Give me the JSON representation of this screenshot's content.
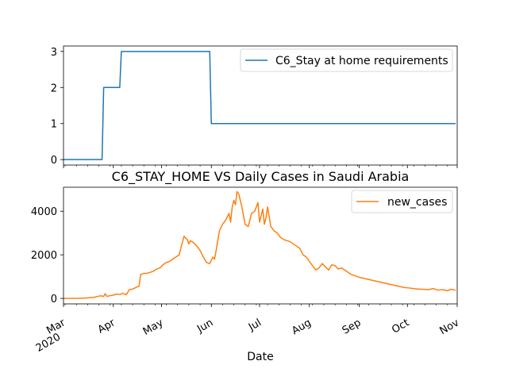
{
  "figure": {
    "title": "C6_STAY_HOME VS Daily Cases in Saudi Arabia",
    "xlabel": "Date"
  },
  "colors": {
    "series1": "#1f77b4",
    "series2": "#ff7f0e"
  },
  "chart_data": [
    {
      "type": "line",
      "title": "",
      "ylabel": "",
      "legend": {
        "position": "top-right",
        "entries": [
          "C6_Stay at home requirements"
        ]
      },
      "x_range": [
        "2020-03-01",
        "2020-11-01"
      ],
      "ylim": [
        -0.15,
        3.15
      ],
      "yticks": [
        0,
        1,
        2,
        3
      ],
      "grid": false,
      "series": [
        {
          "name": "C6_Stay at home requirements",
          "points": [
            [
              "2020-03-01",
              0
            ],
            [
              "2020-03-25",
              0
            ],
            [
              "2020-03-26",
              2
            ],
            [
              "2020-04-05",
              2
            ],
            [
              "2020-04-06",
              3
            ],
            [
              "2020-05-31",
              3
            ],
            [
              "2020-06-01",
              1
            ],
            [
              "2020-10-31",
              1
            ]
          ]
        }
      ]
    },
    {
      "type": "line",
      "title": "C6_STAY_HOME VS Daily Cases in Saudi Arabia",
      "xlabel": "Date",
      "ylabel": "",
      "legend": {
        "position": "top-right",
        "entries": [
          "new_cases"
        ]
      },
      "x_range": [
        "2020-03-01",
        "2020-11-01"
      ],
      "ylim": [
        -250,
        5100
      ],
      "yticks": [
        0,
        2000,
        4000
      ],
      "grid": false,
      "xtick_labels": [
        {
          "date": "2020-03-01",
          "label": "Mar",
          "sublabel": "2020"
        },
        {
          "date": "2020-04-01",
          "label": "Apr"
        },
        {
          "date": "2020-05-01",
          "label": "May"
        },
        {
          "date": "2020-06-01",
          "label": "Jun"
        },
        {
          "date": "2020-07-01",
          "label": "Jul"
        },
        {
          "date": "2020-08-01",
          "label": "Aug"
        },
        {
          "date": "2020-09-01",
          "label": "Sep"
        },
        {
          "date": "2020-10-01",
          "label": "Oct"
        },
        {
          "date": "2020-11-01",
          "label": "Nov"
        }
      ],
      "series": [
        {
          "name": "new_cases",
          "points": [
            [
              "2020-03-01",
              0
            ],
            [
              "2020-03-10",
              5
            ],
            [
              "2020-03-15",
              20
            ],
            [
              "2020-03-20",
              50
            ],
            [
              "2020-03-24",
              120
            ],
            [
              "2020-03-26",
              90
            ],
            [
              "2020-03-27",
              220
            ],
            [
              "2020-03-28",
              90
            ],
            [
              "2020-03-30",
              130
            ],
            [
              "2020-04-01",
              150
            ],
            [
              "2020-04-03",
              200
            ],
            [
              "2020-04-05",
              180
            ],
            [
              "2020-04-07",
              230
            ],
            [
              "2020-04-09",
              170
            ],
            [
              "2020-04-11",
              400
            ],
            [
              "2020-04-13",
              430
            ],
            [
              "2020-04-15",
              500
            ],
            [
              "2020-04-17",
              560
            ],
            [
              "2020-04-18",
              1100
            ],
            [
              "2020-04-20",
              1150
            ],
            [
              "2020-04-22",
              1150
            ],
            [
              "2020-04-24",
              1200
            ],
            [
              "2020-04-26",
              1250
            ],
            [
              "2020-04-28",
              1350
            ],
            [
              "2020-04-30",
              1400
            ],
            [
              "2020-05-02",
              1550
            ],
            [
              "2020-05-04",
              1650
            ],
            [
              "2020-05-06",
              1700
            ],
            [
              "2020-05-08",
              1800
            ],
            [
              "2020-05-10",
              1900
            ],
            [
              "2020-05-12",
              2000
            ],
            [
              "2020-05-13",
              2300
            ],
            [
              "2020-05-15",
              2850
            ],
            [
              "2020-05-17",
              2700
            ],
            [
              "2020-05-18",
              2500
            ],
            [
              "2020-05-19",
              2650
            ],
            [
              "2020-05-21",
              2550
            ],
            [
              "2020-05-23",
              2400
            ],
            [
              "2020-05-25",
              2200
            ],
            [
              "2020-05-27",
              1900
            ],
            [
              "2020-05-29",
              1650
            ],
            [
              "2020-05-31",
              1600
            ],
            [
              "2020-06-02",
              1900
            ],
            [
              "2020-06-03",
              1800
            ],
            [
              "2020-06-04",
              2200
            ],
            [
              "2020-06-06",
              3100
            ],
            [
              "2020-06-08",
              3400
            ],
            [
              "2020-06-10",
              3600
            ],
            [
              "2020-06-12",
              3900
            ],
            [
              "2020-06-13",
              3500
            ],
            [
              "2020-06-14",
              4200
            ],
            [
              "2020-06-15",
              4500
            ],
            [
              "2020-06-16",
              4300
            ],
            [
              "2020-06-17",
              4900
            ],
            [
              "2020-06-18",
              4800
            ],
            [
              "2020-06-20",
              4200
            ],
            [
              "2020-06-21",
              3800
            ],
            [
              "2020-06-22",
              3400
            ],
            [
              "2020-06-24",
              3300
            ],
            [
              "2020-06-26",
              3900
            ],
            [
              "2020-06-28",
              4000
            ],
            [
              "2020-06-30",
              4400
            ],
            [
              "2020-07-01",
              3500
            ],
            [
              "2020-07-03",
              4100
            ],
            [
              "2020-07-04",
              3400
            ],
            [
              "2020-07-05",
              3700
            ],
            [
              "2020-07-06",
              4200
            ],
            [
              "2020-07-08",
              3300
            ],
            [
              "2020-07-10",
              3100
            ],
            [
              "2020-07-12",
              3000
            ],
            [
              "2020-07-14",
              2800
            ],
            [
              "2020-07-16",
              2700
            ],
            [
              "2020-07-18",
              2650
            ],
            [
              "2020-07-20",
              2600
            ],
            [
              "2020-07-22",
              2500
            ],
            [
              "2020-07-24",
              2400
            ],
            [
              "2020-07-26",
              2300
            ],
            [
              "2020-07-28",
              2000
            ],
            [
              "2020-07-30",
              1900
            ],
            [
              "2020-08-01",
              1700
            ],
            [
              "2020-08-03",
              1500
            ],
            [
              "2020-08-05",
              1300
            ],
            [
              "2020-08-07",
              1400
            ],
            [
              "2020-08-09",
              1600
            ],
            [
              "2020-08-11",
              1450
            ],
            [
              "2020-08-13",
              1300
            ],
            [
              "2020-08-15",
              1550
            ],
            [
              "2020-08-17",
              1500
            ],
            [
              "2020-08-19",
              1350
            ],
            [
              "2020-08-21",
              1400
            ],
            [
              "2020-08-23",
              1300
            ],
            [
              "2020-08-25",
              1200
            ],
            [
              "2020-08-27",
              1100
            ],
            [
              "2020-08-29",
              1050
            ],
            [
              "2020-08-31",
              1000
            ],
            [
              "2020-09-02",
              950
            ],
            [
              "2020-09-05",
              900
            ],
            [
              "2020-09-08",
              850
            ],
            [
              "2020-09-11",
              800
            ],
            [
              "2020-09-14",
              750
            ],
            [
              "2020-09-17",
              700
            ],
            [
              "2020-09-20",
              650
            ],
            [
              "2020-09-23",
              600
            ],
            [
              "2020-09-26",
              550
            ],
            [
              "2020-09-29",
              500
            ],
            [
              "2020-10-02",
              480
            ],
            [
              "2020-10-05",
              450
            ],
            [
              "2020-10-08",
              430
            ],
            [
              "2020-10-11",
              420
            ],
            [
              "2020-10-14",
              400
            ],
            [
              "2020-10-17",
              450
            ],
            [
              "2020-10-20",
              380
            ],
            [
              "2020-10-23",
              400
            ],
            [
              "2020-10-26",
              350
            ],
            [
              "2020-10-28",
              420
            ],
            [
              "2020-10-31",
              380
            ]
          ]
        }
      ]
    }
  ]
}
